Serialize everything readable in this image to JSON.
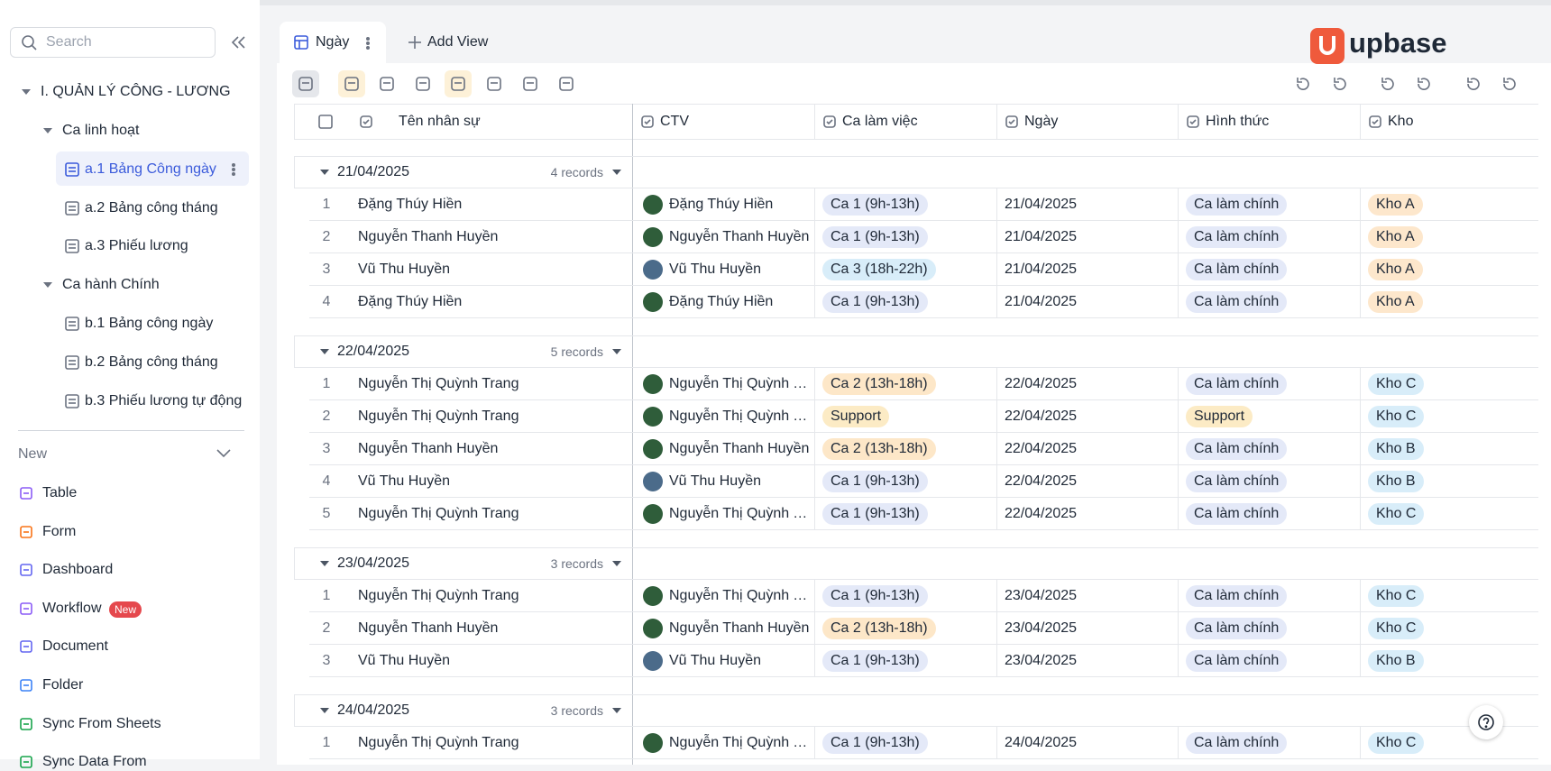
{
  "sidebar": {
    "search": "Search",
    "root": "I. QUẢN LÝ CÔNG - LƯƠNG",
    "sections": [
      {
        "label": "Ca linh hoạt",
        "items": [
          "a.1 Bảng Công ngày",
          "a.2 Bảng công tháng",
          "a.3 Phiếu lương"
        ]
      },
      {
        "label": "Ca hành Chính",
        "items": [
          "b.1 Bảng công ngày",
          "b.2 Bảng công tháng",
          "b.3 Phiếu lương tự động"
        ]
      }
    ],
    "new_label": "New",
    "new_items": [
      "Table",
      "Form",
      "Dashboard",
      "Workflow",
      "Document",
      "Folder",
      "Sync From Sheets",
      "Sync Data From"
    ],
    "badge": "New"
  },
  "tabs": {
    "active": "Ngày",
    "add": "Add View"
  },
  "brand": "upbase",
  "columns": [
    "Tên nhân sự",
    "CTV",
    "Ca làm việc",
    "Ngày",
    "Hình thức",
    "Kho"
  ],
  "groups": [
    {
      "date": "21/04/2025",
      "count": "4 records",
      "rows": [
        [
          "1",
          "Đặng Thúy Hiền",
          "Đặng Thúy Hiền",
          [
            "Ca 1 (9h-13h)",
            "#e4e9f8"
          ],
          "21/04/2025",
          [
            "Ca làm chính",
            "#e4e9f8"
          ],
          [
            "Kho A",
            "#fde7cc"
          ]
        ],
        [
          "2",
          "Nguyễn Thanh Huyền",
          "Nguyễn Thanh Huyền",
          [
            "Ca 1 (9h-13h)",
            "#e4e9f8"
          ],
          "21/04/2025",
          [
            "Ca làm chính",
            "#e4e9f8"
          ],
          [
            "Kho A",
            "#fde7cc"
          ]
        ],
        [
          "3",
          "Vũ Thu Huyền",
          "Vũ Thu Huyền",
          [
            "Ca 3 (18h-22h)",
            "#d8edf9"
          ],
          "21/04/2025",
          [
            "Ca làm chính",
            "#e4e9f8"
          ],
          [
            "Kho A",
            "#fde7cc"
          ]
        ],
        [
          "4",
          "Đặng Thúy Hiền",
          "Đặng Thúy Hiền",
          [
            "Ca 1 (9h-13h)",
            "#e4e9f8"
          ],
          "21/04/2025",
          [
            "Ca làm chính",
            "#e4e9f8"
          ],
          [
            "Kho A",
            "#fde7cc"
          ]
        ]
      ]
    },
    {
      "date": "22/04/2025",
      "count": "5 records",
      "rows": [
        [
          "1",
          "Nguyễn Thị Quỳnh Trang",
          "Nguyễn Thị Quỳnh Trang",
          [
            "Ca 2 (13h-18h)",
            "#fde7c8"
          ],
          "22/04/2025",
          [
            "Ca làm chính",
            "#e4e9f8"
          ],
          [
            "Kho C",
            "#d8edf9"
          ]
        ],
        [
          "2",
          "Nguyễn Thị Quỳnh Trang",
          "Nguyễn Thị Quỳnh Trang",
          [
            "Support",
            "#fcebc5"
          ],
          "22/04/2025",
          [
            "Support",
            "#fcebc5"
          ],
          [
            "Kho C",
            "#d8edf9"
          ]
        ],
        [
          "3",
          "Nguyễn Thanh Huyền",
          "Nguyễn Thanh Huyền",
          [
            "Ca 2 (13h-18h)",
            "#fde7c8"
          ],
          "22/04/2025",
          [
            "Ca làm chính",
            "#e4e9f8"
          ],
          [
            "Kho B",
            "#d8edf9"
          ]
        ],
        [
          "4",
          "Vũ Thu Huyền",
          "Vũ Thu Huyền",
          [
            "Ca 1 (9h-13h)",
            "#e4e9f8"
          ],
          "22/04/2025",
          [
            "Ca làm chính",
            "#e4e9f8"
          ],
          [
            "Kho B",
            "#d8edf9"
          ]
        ],
        [
          "5",
          "Nguyễn Thị Quỳnh Trang",
          "Nguyễn Thị Quỳnh Trang",
          [
            "Ca 1 (9h-13h)",
            "#e4e9f8"
          ],
          "22/04/2025",
          [
            "Ca làm chính",
            "#e4e9f8"
          ],
          [
            "Kho C",
            "#d8edf9"
          ]
        ]
      ]
    },
    {
      "date": "23/04/2025",
      "count": "3 records",
      "rows": [
        [
          "1",
          "Nguyễn Thị Quỳnh Trang",
          "Nguyễn Thị Quỳnh Trang",
          [
            "Ca 1 (9h-13h)",
            "#e4e9f8"
          ],
          "23/04/2025",
          [
            "Ca làm chính",
            "#e4e9f8"
          ],
          [
            "Kho C",
            "#d8edf9"
          ]
        ],
        [
          "2",
          "Nguyễn Thanh Huyền",
          "Nguyễn Thanh Huyền",
          [
            "Ca 2 (13h-18h)",
            "#fde7c8"
          ],
          "23/04/2025",
          [
            "Ca làm chính",
            "#e4e9f8"
          ],
          [
            "Kho C",
            "#d8edf9"
          ]
        ],
        [
          "3",
          "Vũ Thu Huyền",
          "Vũ Thu Huyền",
          [
            "Ca 1 (9h-13h)",
            "#e4e9f8"
          ],
          "23/04/2025",
          [
            "Ca làm chính",
            "#e4e9f8"
          ],
          [
            "Kho B",
            "#d8edf9"
          ]
        ]
      ]
    },
    {
      "date": "24/04/2025",
      "count": "3 records",
      "rows": [
        [
          "1",
          "Nguyễn Thị Quỳnh Trang",
          "Nguyễn Thị Quỳnh Trang",
          [
            "Ca 1 (9h-13h)",
            "#e4e9f8"
          ],
          "24/04/2025",
          [
            "Ca làm chính",
            "#e4e9f8"
          ],
          [
            "Kho C",
            "#d8edf9"
          ]
        ]
      ]
    }
  ]
}
